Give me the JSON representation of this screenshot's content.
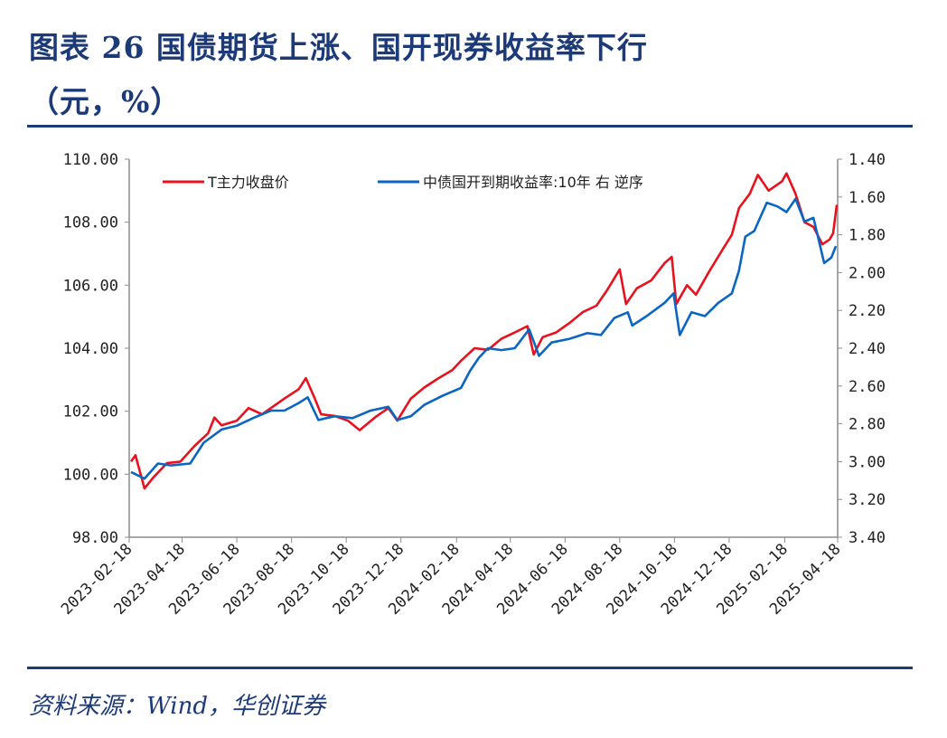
{
  "header": {
    "title_line1": "图表 26 国债期货上涨、国开现券收益率下行",
    "title_line2": "（元，%）"
  },
  "footer": {
    "source": "资料来源：Wind，华创证券"
  },
  "colors": {
    "title": "#1c3a78",
    "series_t": "#e8121e",
    "series_yield": "#0a66c2",
    "axis": "#8c8c8c"
  },
  "chart_data": {
    "type": "line",
    "title": "",
    "legend_position": "top",
    "grid": false,
    "x_ticks": [
      "2023-02-18",
      "2023-04-18",
      "2023-06-18",
      "2023-08-18",
      "2023-10-18",
      "2023-12-18",
      "2024-02-18",
      "2024-04-18",
      "2024-06-18",
      "2024-08-18",
      "2024-10-18",
      "2024-12-18",
      "2025-02-18",
      "2025-04-18"
    ],
    "y_left": {
      "min": 98,
      "max": 110,
      "ticks": [
        "110.00",
        "108.00",
        "106.00",
        "104.00",
        "102.00",
        "100.00",
        "98.00"
      ]
    },
    "y_right": {
      "min": 1.4,
      "max": 3.4,
      "reversed": true,
      "ticks": [
        "1.40",
        "1.60",
        "1.80",
        "2.00",
        "2.20",
        "2.40",
        "2.60",
        "2.80",
        "3.00",
        "3.20",
        "3.40"
      ]
    },
    "series": [
      {
        "name": "T主力收盘价",
        "axis": "left",
        "points": [
          [
            "2023-02-20",
            100.4
          ],
          [
            "2023-02-25",
            100.6
          ],
          [
            "2023-03-07",
            99.55
          ],
          [
            "2023-03-17",
            99.9
          ],
          [
            "2023-04-01",
            100.35
          ],
          [
            "2023-04-16",
            100.4
          ],
          [
            "2023-05-02",
            100.9
          ],
          [
            "2023-05-17",
            101.3
          ],
          [
            "2023-05-24",
            101.8
          ],
          [
            "2023-06-01",
            101.55
          ],
          [
            "2023-06-18",
            101.7
          ],
          [
            "2023-07-01",
            102.1
          ],
          [
            "2023-07-16",
            101.9
          ],
          [
            "2023-07-31",
            102.2
          ],
          [
            "2023-08-10",
            102.4
          ],
          [
            "2023-08-26",
            102.7
          ],
          [
            "2023-09-03",
            103.05
          ],
          [
            "2023-09-13",
            102.4
          ],
          [
            "2023-09-20",
            101.9
          ],
          [
            "2023-10-05",
            101.85
          ],
          [
            "2023-10-20",
            101.7
          ],
          [
            "2023-11-02",
            101.4
          ],
          [
            "2023-11-19",
            101.8
          ],
          [
            "2023-12-04",
            102.1
          ],
          [
            "2023-12-14",
            101.7
          ],
          [
            "2023-12-29",
            102.4
          ],
          [
            "2024-01-13",
            102.75
          ],
          [
            "2024-01-29",
            103.05
          ],
          [
            "2024-02-13",
            103.3
          ],
          [
            "2024-02-23",
            103.6
          ],
          [
            "2024-03-09",
            104.0
          ],
          [
            "2024-03-24",
            103.95
          ],
          [
            "2024-04-08",
            104.3
          ],
          [
            "2024-04-23",
            104.5
          ],
          [
            "2024-05-07",
            104.7
          ],
          [
            "2024-05-14",
            103.8
          ],
          [
            "2024-05-24",
            104.35
          ],
          [
            "2024-06-08",
            104.5
          ],
          [
            "2024-06-23",
            104.8
          ],
          [
            "2024-07-08",
            105.15
          ],
          [
            "2024-07-23",
            105.35
          ],
          [
            "2024-08-04",
            105.85
          ],
          [
            "2024-08-18",
            106.5
          ],
          [
            "2024-08-25",
            105.4
          ],
          [
            "2024-09-06",
            105.9
          ],
          [
            "2024-09-22",
            106.15
          ],
          [
            "2024-10-07",
            106.7
          ],
          [
            "2024-10-15",
            106.9
          ],
          [
            "2024-10-20",
            105.4
          ],
          [
            "2024-11-01",
            106.0
          ],
          [
            "2024-11-11",
            105.7
          ],
          [
            "2024-11-26",
            106.45
          ],
          [
            "2024-12-11",
            107.15
          ],
          [
            "2024-12-21",
            107.6
          ],
          [
            "2024-12-29",
            108.45
          ],
          [
            "2025-01-10",
            108.9
          ],
          [
            "2025-01-19",
            109.5
          ],
          [
            "2025-01-31",
            109.0
          ],
          [
            "2025-02-15",
            109.3
          ],
          [
            "2025-02-20",
            109.55
          ],
          [
            "2025-03-02",
            108.9
          ],
          [
            "2025-03-12",
            108.0
          ],
          [
            "2025-03-22",
            107.85
          ],
          [
            "2025-04-01",
            107.3
          ],
          [
            "2025-04-09",
            107.45
          ],
          [
            "2025-04-13",
            107.65
          ],
          [
            "2025-04-17",
            108.55
          ]
        ]
      },
      {
        "name": "中债国开到期收益率:10年 右 逆序",
        "axis": "right",
        "points": [
          [
            "2023-02-20",
            3.055
          ],
          [
            "2023-03-07",
            3.09
          ],
          [
            "2023-03-22",
            3.01
          ],
          [
            "2023-04-06",
            3.02
          ],
          [
            "2023-04-27",
            3.01
          ],
          [
            "2023-05-12",
            2.9
          ],
          [
            "2023-06-01",
            2.83
          ],
          [
            "2023-06-18",
            2.81
          ],
          [
            "2023-07-06",
            2.77
          ],
          [
            "2023-07-26",
            2.73
          ],
          [
            "2023-08-10",
            2.73
          ],
          [
            "2023-08-26",
            2.69
          ],
          [
            "2023-09-05",
            2.66
          ],
          [
            "2023-09-17",
            2.78
          ],
          [
            "2023-10-05",
            2.76
          ],
          [
            "2023-10-25",
            2.77
          ],
          [
            "2023-11-14",
            2.73
          ],
          [
            "2023-12-04",
            2.71
          ],
          [
            "2023-12-14",
            2.78
          ],
          [
            "2023-12-29",
            2.76
          ],
          [
            "2024-01-13",
            2.7
          ],
          [
            "2024-02-03",
            2.65
          ],
          [
            "2024-02-23",
            2.61
          ],
          [
            "2024-03-04",
            2.52
          ],
          [
            "2024-03-14",
            2.45
          ],
          [
            "2024-03-24",
            2.4
          ],
          [
            "2024-04-08",
            2.41
          ],
          [
            "2024-04-23",
            2.4
          ],
          [
            "2024-05-09",
            2.3
          ],
          [
            "2024-05-20",
            2.44
          ],
          [
            "2024-06-03",
            2.37
          ],
          [
            "2024-06-23",
            2.35
          ],
          [
            "2024-07-13",
            2.32
          ],
          [
            "2024-07-28",
            2.33
          ],
          [
            "2024-08-12",
            2.24
          ],
          [
            "2024-08-27",
            2.21
          ],
          [
            "2024-09-01",
            2.28
          ],
          [
            "2024-09-17",
            2.23
          ],
          [
            "2024-10-07",
            2.16
          ],
          [
            "2024-10-17",
            2.11
          ],
          [
            "2024-10-24",
            2.33
          ],
          [
            "2024-11-06",
            2.21
          ],
          [
            "2024-11-21",
            2.23
          ],
          [
            "2024-12-06",
            2.16
          ],
          [
            "2024-12-21",
            2.11
          ],
          [
            "2024-12-29",
            1.99
          ],
          [
            "2025-01-05",
            1.81
          ],
          [
            "2025-01-15",
            1.78
          ],
          [
            "2025-01-29",
            1.63
          ],
          [
            "2025-02-10",
            1.65
          ],
          [
            "2025-02-20",
            1.68
          ],
          [
            "2025-03-02",
            1.61
          ],
          [
            "2025-03-12",
            1.73
          ],
          [
            "2025-03-22",
            1.71
          ],
          [
            "2025-04-03",
            1.95
          ],
          [
            "2025-04-11",
            1.92
          ],
          [
            "2025-04-16",
            1.86
          ]
        ]
      }
    ]
  }
}
